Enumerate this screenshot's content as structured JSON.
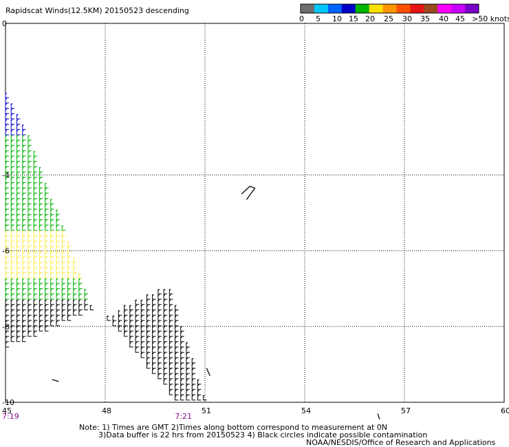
{
  "chart_data": {
    "type": "scatter",
    "title": "Rapidscat Winds(12.5KM) 20150523 descending",
    "xlim": [
      45,
      60
    ],
    "ylim": [
      -10,
      0
    ],
    "x_ticks": [
      "45",
      "48",
      "51",
      "54",
      "57",
      "60"
    ],
    "y_ticks": [
      "0",
      "-4",
      "-6",
      "-8",
      "-10"
    ],
    "time_labels": [
      {
        "text": "7:19",
        "x": 45
      },
      {
        "text": "7:21",
        "x": 50.2
      }
    ],
    "legend": {
      "ticks": [
        "0",
        "5",
        "10",
        "15",
        "20",
        "25",
        "30",
        "35",
        "40",
        "45",
        ">50 knots"
      ],
      "colors": [
        "#6e6e6e",
        "#00c8ff",
        "#0064ff",
        "#0000c8",
        "#00b400",
        "#ffe100",
        "#ff9600",
        "#ff5000",
        "#e61414",
        "#9a4a1e",
        "#ff00ff",
        "#c800ff",
        "#7800c8"
      ]
    },
    "wind_colors": {
      "blue": "#0000c8",
      "green": "#00b400",
      "yellow": "#ffee55",
      "black": "#000000"
    },
    "swaths": [
      {
        "name": "western swath",
        "edge": [
          [
            45.0,
            -1.9
          ],
          [
            45.0,
            -8.6
          ],
          [
            47.6,
            -7.6
          ],
          [
            45.6,
            -2.8
          ]
        ],
        "bands": [
          {
            "color": "blue",
            "from_lat": -1.9,
            "to_lat": -3.0
          },
          {
            "color": "green",
            "from_lat": -3.0,
            "to_lat": -7.3
          },
          {
            "color": "yellow",
            "lat_range": [
              -5.5,
              -6.8
            ],
            "lon_range": [
              45.0,
              47.4
            ]
          },
          {
            "color": "black",
            "from_lat": -7.3,
            "to_lat": -8.6
          }
        ]
      },
      {
        "name": "southern swath",
        "edge": [
          [
            48.0,
            -7.8
          ],
          [
            49.9,
            -7.0
          ],
          [
            51.0,
            -10.0
          ],
          [
            50.1,
            -10.0
          ]
        ],
        "bands": [
          {
            "color": "black",
            "from_lat": -7.0,
            "to_lat": -10.0
          }
        ]
      }
    ],
    "land_outlines": [
      {
        "name": "Seychelles",
        "points": [
          [
            52.1,
            -4.5
          ],
          [
            52.35,
            -4.3
          ],
          [
            52.5,
            -4.35
          ],
          [
            52.25,
            -4.65
          ]
        ]
      },
      {
        "name": "Agalega",
        "points": [
          [
            56.2,
            -10.3
          ],
          [
            56.25,
            -10.45
          ]
        ]
      },
      {
        "name": "Aldabra",
        "points": [
          [
            46.4,
            -9.4
          ],
          [
            46.6,
            -9.45
          ]
        ]
      },
      {
        "name": "Farquhar",
        "points": [
          [
            51.05,
            -9.1
          ],
          [
            51.15,
            -9.3
          ]
        ]
      }
    ]
  },
  "footer": {
    "note_line1": "Note: 1) Times are GMT 2)Times along bottom correspond to measurement at 0N",
    "note_line2": "3)Data buffer is 22 hrs from 20150523 4) Black circles indicate possible contamination",
    "credit": "NOAA/NESDIS/Office of Research and Applications"
  }
}
